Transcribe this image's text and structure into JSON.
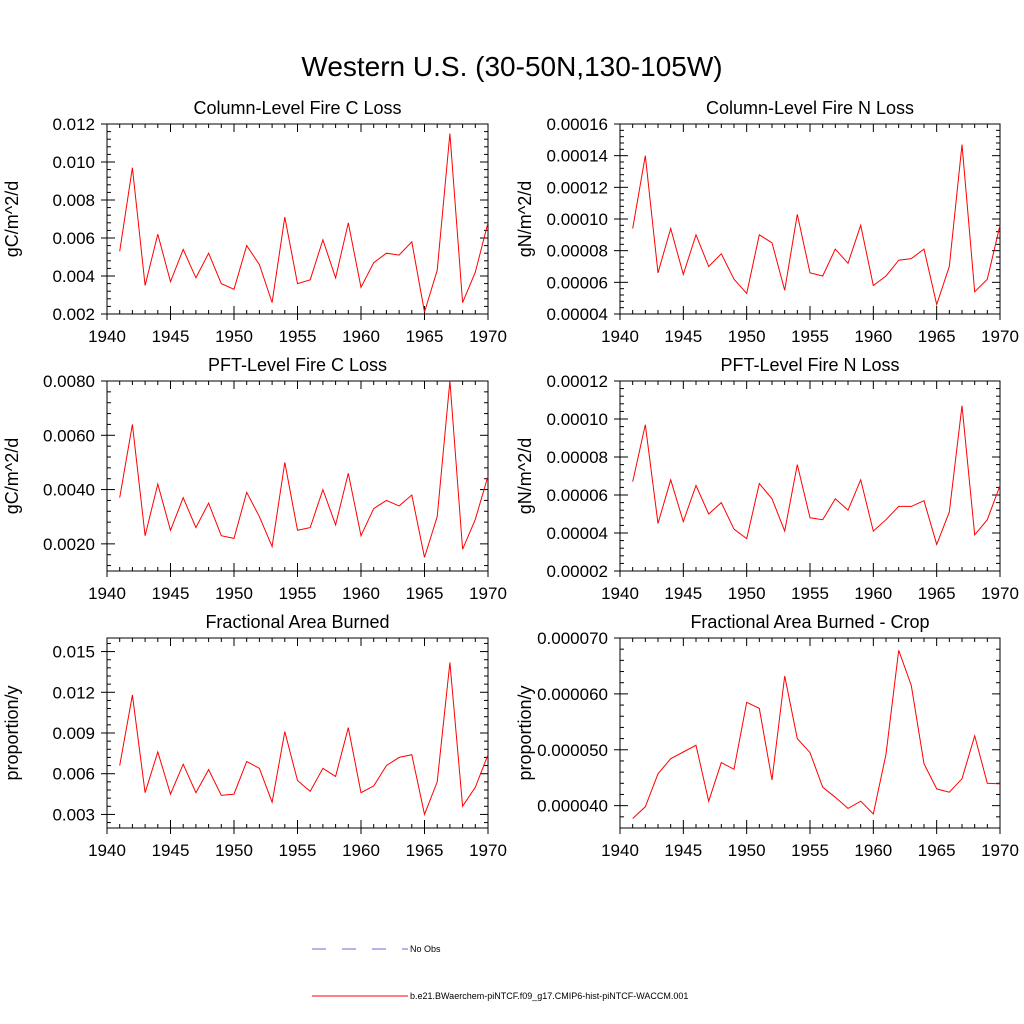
{
  "figure": {
    "title": "Western U.S. (30-50N,130-105W)"
  },
  "legend": {
    "items": [
      {
        "label": "No Obs",
        "color": "#6a6ad0",
        "dash": true
      },
      {
        "label": "b.e21.BWaerchem-piNTCF.f09_g17.CMIP6-hist-piNTCF-WACCM.001",
        "color": "#ff0000",
        "dash": false
      }
    ]
  },
  "chart_data": [
    {
      "type": "line",
      "title": "Column-Level Fire C Loss",
      "ylabel": "gC/m^2/d",
      "xlabel": "",
      "xlim": [
        1940,
        1970
      ],
      "ylim": [
        0.002,
        0.012
      ],
      "xticks": [
        "1940",
        "1945",
        "1950",
        "1955",
        "1960",
        "1965",
        "1970"
      ],
      "yticks": [
        "0.002",
        "0.004",
        "0.006",
        "0.008",
        "0.010",
        "0.012"
      ],
      "series": [
        {
          "color": "#ff0000",
          "x": [
            1941,
            1942,
            1943,
            1944,
            1945,
            1946,
            1947,
            1948,
            1949,
            1950,
            1951,
            1952,
            1953,
            1954,
            1955,
            1956,
            1957,
            1958,
            1959,
            1960,
            1961,
            1962,
            1963,
            1964,
            1965,
            1966,
            1967,
            1968,
            1969,
            1970
          ],
          "values": [
            0.0053,
            0.0097,
            0.0035,
            0.0062,
            0.0037,
            0.0054,
            0.0039,
            0.0052,
            0.0036,
            0.0033,
            0.0056,
            0.0046,
            0.0026,
            0.0071,
            0.0036,
            0.0038,
            0.0059,
            0.0039,
            0.0068,
            0.0034,
            0.0047,
            0.0052,
            0.0051,
            0.0058,
            0.0021,
            0.0043,
            0.0115,
            0.0026,
            0.0042,
            0.0068
          ]
        }
      ]
    },
    {
      "type": "line",
      "title": "Column-Level Fire N Loss",
      "ylabel": "gN/m^2/d",
      "xlabel": "",
      "xlim": [
        1940,
        1970
      ],
      "ylim": [
        4e-05,
        0.00016
      ],
      "xticks": [
        "1940",
        "1945",
        "1950",
        "1955",
        "1960",
        "1965",
        "1970"
      ],
      "yticks": [
        "0.00004",
        "0.00006",
        "0.00008",
        "0.00010",
        "0.00012",
        "0.00014",
        "0.00016"
      ],
      "series": [
        {
          "color": "#ff0000",
          "x": [
            1941,
            1942,
            1943,
            1944,
            1945,
            1946,
            1947,
            1948,
            1949,
            1950,
            1951,
            1952,
            1953,
            1954,
            1955,
            1956,
            1957,
            1958,
            1959,
            1960,
            1961,
            1962,
            1963,
            1964,
            1965,
            1966,
            1967,
            1968,
            1969,
            1970
          ],
          "values": [
            9.4e-05,
            0.00014,
            6.6e-05,
            9.4e-05,
            6.5e-05,
            9e-05,
            7e-05,
            7.8e-05,
            6.2e-05,
            5.3e-05,
            9e-05,
            8.5e-05,
            5.5e-05,
            0.000103,
            6.6e-05,
            6.4e-05,
            8.1e-05,
            7.2e-05,
            9.6e-05,
            5.8e-05,
            6.4e-05,
            7.4e-05,
            7.5e-05,
            8.1e-05,
            4.6e-05,
            7e-05,
            0.000147,
            5.4e-05,
            6.2e-05,
            9.6e-05
          ]
        }
      ]
    },
    {
      "type": "line",
      "title": "PFT-Level Fire C Loss",
      "ylabel": "gC/m^2/d",
      "xlabel": "",
      "xlim": [
        1940,
        1970
      ],
      "ylim": [
        0.001,
        0.008
      ],
      "xticks": [
        "1940",
        "1945",
        "1950",
        "1955",
        "1960",
        "1965",
        "1970"
      ],
      "yticks": [
        "0.0020",
        "0.0040",
        "0.0060",
        "0.0080"
      ],
      "series": [
        {
          "color": "#ff0000",
          "x": [
            1941,
            1942,
            1943,
            1944,
            1945,
            1946,
            1947,
            1948,
            1949,
            1950,
            1951,
            1952,
            1953,
            1954,
            1955,
            1956,
            1957,
            1958,
            1959,
            1960,
            1961,
            1962,
            1963,
            1964,
            1965,
            1966,
            1967,
            1968,
            1969,
            1970
          ],
          "values": [
            0.0037,
            0.0064,
            0.0023,
            0.0042,
            0.0025,
            0.0037,
            0.0026,
            0.0035,
            0.0023,
            0.0022,
            0.0039,
            0.003,
            0.0019,
            0.005,
            0.0025,
            0.0026,
            0.004,
            0.0027,
            0.0046,
            0.0023,
            0.0033,
            0.0036,
            0.0034,
            0.0038,
            0.0015,
            0.003,
            0.008,
            0.0018,
            0.0029,
            0.0045
          ]
        }
      ]
    },
    {
      "type": "line",
      "title": "PFT-Level Fire N Loss",
      "ylabel": "gN/m^2/d",
      "xlabel": "",
      "xlim": [
        1940,
        1970
      ],
      "ylim": [
        2e-05,
        0.00012
      ],
      "xticks": [
        "1940",
        "1945",
        "1950",
        "1955",
        "1960",
        "1965",
        "1970"
      ],
      "yticks": [
        "0.00002",
        "0.00004",
        "0.00006",
        "0.00008",
        "0.00010",
        "0.00012"
      ],
      "series": [
        {
          "color": "#ff0000",
          "x": [
            1941,
            1942,
            1943,
            1944,
            1945,
            1946,
            1947,
            1948,
            1949,
            1950,
            1951,
            1952,
            1953,
            1954,
            1955,
            1956,
            1957,
            1958,
            1959,
            1960,
            1961,
            1962,
            1963,
            1964,
            1965,
            1966,
            1967,
            1968,
            1969,
            1970
          ],
          "values": [
            6.7e-05,
            9.7e-05,
            4.5e-05,
            6.8e-05,
            4.6e-05,
            6.5e-05,
            5e-05,
            5.6e-05,
            4.2e-05,
            3.7e-05,
            6.6e-05,
            5.8e-05,
            4.1e-05,
            7.6e-05,
            4.8e-05,
            4.7e-05,
            5.8e-05,
            5.2e-05,
            6.8e-05,
            4.1e-05,
            4.7e-05,
            5.4e-05,
            5.4e-05,
            5.7e-05,
            3.4e-05,
            5.1e-05,
            0.000107,
            3.9e-05,
            4.7e-05,
            6.5e-05
          ]
        }
      ]
    },
    {
      "type": "line",
      "title": "Fractional Area Burned",
      "ylabel": "proportion/y",
      "xlabel": "",
      "xlim": [
        1940,
        1970
      ],
      "ylim": [
        0.002,
        0.016
      ],
      "xticks": [
        "1940",
        "1945",
        "1950",
        "1955",
        "1960",
        "1965",
        "1970"
      ],
      "yticks": [
        "0.003",
        "0.006",
        "0.009",
        "0.012",
        "0.015"
      ],
      "series": [
        {
          "color": "#ff0000",
          "x": [
            1941,
            1942,
            1943,
            1944,
            1945,
            1946,
            1947,
            1948,
            1949,
            1950,
            1951,
            1952,
            1953,
            1954,
            1955,
            1956,
            1957,
            1958,
            1959,
            1960,
            1961,
            1962,
            1963,
            1964,
            1965,
            1966,
            1967,
            1968,
            1969,
            1970
          ],
          "values": [
            0.0066,
            0.0118,
            0.0046,
            0.0076,
            0.0045,
            0.0067,
            0.0046,
            0.0063,
            0.0044,
            0.0045,
            0.0069,
            0.0064,
            0.0039,
            0.0091,
            0.0055,
            0.0047,
            0.0064,
            0.0058,
            0.0094,
            0.0046,
            0.0051,
            0.0066,
            0.0072,
            0.0074,
            0.003,
            0.0054,
            0.0142,
            0.0036,
            0.005,
            0.0074
          ]
        }
      ]
    },
    {
      "type": "line",
      "title": "Fractional Area Burned - Crop",
      "ylabel": "proportion/y",
      "xlabel": "",
      "xlim": [
        1940,
        1970
      ],
      "ylim": [
        3.6e-05,
        7e-05
      ],
      "xticks": [
        "1940",
        "1945",
        "1950",
        "1955",
        "1960",
        "1965",
        "1970"
      ],
      "yticks": [
        "0.000040",
        "0.000050",
        "0.000060",
        "0.000070"
      ],
      "series": [
        {
          "color": "#ff0000",
          "x": [
            1941,
            1942,
            1943,
            1944,
            1945,
            1946,
            1947,
            1948,
            1949,
            1950,
            1951,
            1952,
            1953,
            1954,
            1955,
            1956,
            1957,
            1958,
            1959,
            1960,
            1961,
            1962,
            1963,
            1964,
            1965,
            1966,
            1967,
            1968,
            1969,
            1970
          ],
          "values": [
            3.77e-05,
            3.98e-05,
            4.57e-05,
            4.84e-05,
            4.96e-05,
            5.08e-05,
            4.08e-05,
            4.77e-05,
            4.65e-05,
            5.85e-05,
            5.74e-05,
            4.46e-05,
            6.32e-05,
            5.2e-05,
            4.95e-05,
            4.33e-05,
            4.15e-05,
            3.95e-05,
            4.08e-05,
            3.85e-05,
            4.92e-05,
            6.78e-05,
            6.15e-05,
            4.75e-05,
            4.3e-05,
            4.24e-05,
            4.48e-05,
            5.25e-05,
            4.4e-05,
            4.39e-05
          ]
        }
      ]
    }
  ]
}
